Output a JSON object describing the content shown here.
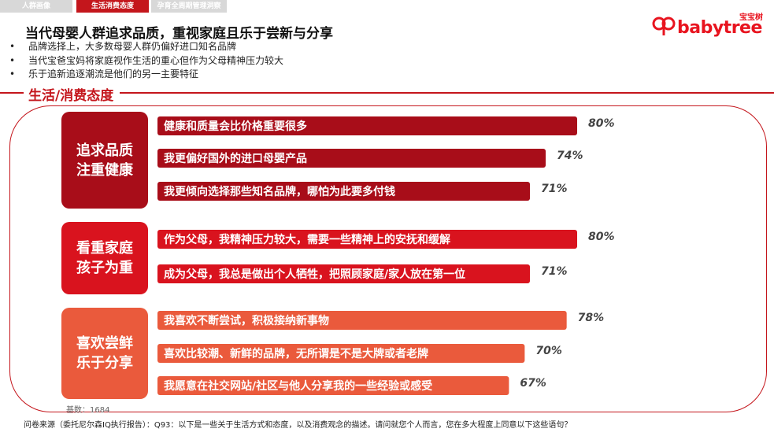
{
  "tabs": [
    "人群画像",
    "生活消费态度",
    "孕育全周期管理洞察"
  ],
  "brand": {
    "name": "babytree",
    "cn": "宝宝树",
    "color": "#e8141f"
  },
  "title": "当代母婴人群追求品质，重视家庭且乐于尝新与分享",
  "bullets": [
    "品牌选择上，大多数母婴人群仍偏好进口知名品牌",
    "当代宝爸宝妈将家庭视作生活的重心但作为父母精神压力较大",
    "乐于追新追逐潮流是他们的另一主要特征"
  ],
  "section_title": "生活/消费态度",
  "groups": [
    {
      "line1": "追求品质",
      "line2": "注重健康",
      "color": "#a80d19"
    },
    {
      "line1": "看重家庭",
      "line2": "孩子为重",
      "color": "#d9131e"
    },
    {
      "line1": "喜欢尝鲜",
      "line2": "乐于分享",
      "color": "#ea5a3c"
    }
  ],
  "chart_data": {
    "type": "bar",
    "orientation": "horizontal",
    "unit": "%",
    "xlim": [
      0,
      80
    ],
    "categories": [
      "健康和质量会比价格重要很多",
      "我更偏好国外的进口母婴产品",
      "我更倾向选择那些知名品牌，哪怕为此要多付钱",
      "作为父母，我精神压力较大，需要一些精神上的安抚和缓解",
      "成为父母，我总是做出个人牺牲，把照顾家庭/家人放在第一位",
      "我喜欢不断尝试，积极接纳新事物",
      "喜欢比较潮、新鲜的品牌，无所谓是不是大牌或者老牌",
      "我愿意在社交网站/社区与他人分享我的一些经验或感受"
    ],
    "values": [
      80,
      74,
      71,
      80,
      71,
      78,
      70,
      67
    ],
    "value_labels": [
      "80%",
      "74%",
      "71%",
      "80%",
      "71%",
      "78%",
      "70%",
      "67%"
    ],
    "group_index": [
      0,
      0,
      0,
      1,
      1,
      2,
      2,
      2
    ],
    "group_colors": [
      "#a80d19",
      "#d9131e",
      "#ea5a3c"
    ]
  },
  "base_text": "基数：1684",
  "source_text": "问卷来源（委托尼尔森IQ执行报告）：Q93：以下是一些关于生活方式和态度，以及消费观念的描述。请问就您个人而言，您在多大程度上同意以下这些语句？"
}
